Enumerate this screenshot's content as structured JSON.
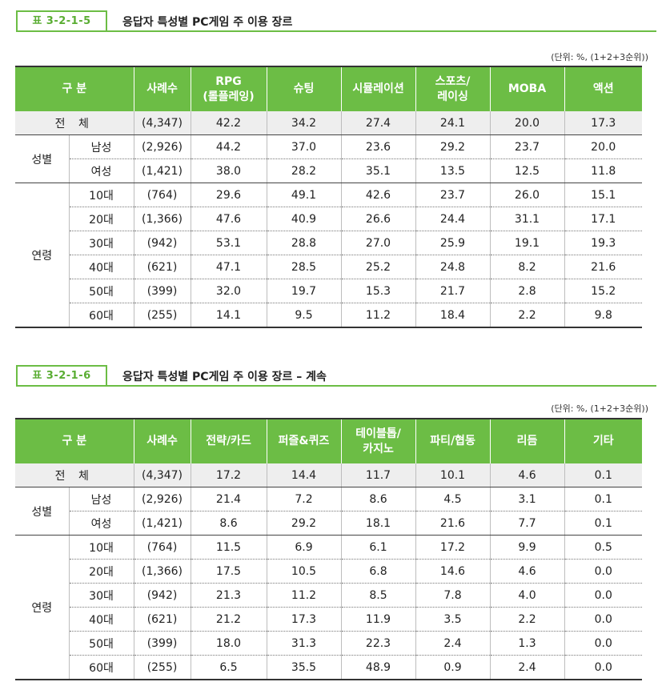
{
  "table1": {
    "tag": "표 3-2-1-5",
    "title": "응답자 특성별 PC게임 주 이용 장르",
    "unit": "(단위: %, (1+2+3순위))",
    "headers": {
      "category": "구 분",
      "n": "사례수",
      "c1a": "RPG",
      "c1b": "(롤플레잉)",
      "c2": "슈팅",
      "c3": "시뮬레이션",
      "c4a": "스포츠/",
      "c4b": "레이싱",
      "c5": "MOBA",
      "c6": "액션"
    },
    "total": {
      "label": "전 체",
      "n": "(4,347)",
      "v": [
        "42.2",
        "34.2",
        "27.4",
        "24.1",
        "20.0",
        "17.3"
      ]
    },
    "gender": {
      "group": "성별",
      "rows": [
        {
          "label": "남성",
          "n": "(2,926)",
          "v": [
            "44.2",
            "37.0",
            "23.6",
            "29.2",
            "23.7",
            "20.0"
          ]
        },
        {
          "label": "여성",
          "n": "(1,421)",
          "v": [
            "38.0",
            "28.2",
            "35.1",
            "13.5",
            "12.5",
            "11.8"
          ]
        }
      ]
    },
    "age": {
      "group": "연령",
      "rows": [
        {
          "label": "10대",
          "n": "(764)",
          "v": [
            "29.6",
            "49.1",
            "42.6",
            "23.7",
            "26.0",
            "15.1"
          ]
        },
        {
          "label": "20대",
          "n": "(1,366)",
          "v": [
            "47.6",
            "40.9",
            "26.6",
            "24.4",
            "31.1",
            "17.1"
          ]
        },
        {
          "label": "30대",
          "n": "(942)",
          "v": [
            "53.1",
            "28.8",
            "27.0",
            "25.9",
            "19.1",
            "19.3"
          ]
        },
        {
          "label": "40대",
          "n": "(621)",
          "v": [
            "47.1",
            "28.5",
            "25.2",
            "24.8",
            "8.2",
            "21.6"
          ]
        },
        {
          "label": "50대",
          "n": "(399)",
          "v": [
            "32.0",
            "19.7",
            "15.3",
            "21.7",
            "2.8",
            "15.2"
          ]
        },
        {
          "label": "60대",
          "n": "(255)",
          "v": [
            "14.1",
            "9.5",
            "11.2",
            "18.4",
            "2.2",
            "9.8"
          ]
        }
      ]
    }
  },
  "table2": {
    "tag": "표 3-2-1-6",
    "title": "응답자 특성별 PC게임 주 이용 장르 – 계속",
    "unit": "(단위: %, (1+2+3순위))",
    "headers": {
      "category": "구 분",
      "n": "사례수",
      "c1": "전략/카드",
      "c2": "퍼즐&퀴즈",
      "c3a": "테이블톱/",
      "c3b": "카지노",
      "c4": "파티/협동",
      "c5": "리듬",
      "c6": "기타"
    },
    "total": {
      "label": "전 체",
      "n": "(4,347)",
      "v": [
        "17.2",
        "14.4",
        "11.7",
        "10.1",
        "4.6",
        "0.1"
      ]
    },
    "gender": {
      "group": "성별",
      "rows": [
        {
          "label": "남성",
          "n": "(2,926)",
          "v": [
            "21.4",
            "7.2",
            "8.6",
            "4.5",
            "3.1",
            "0.1"
          ]
        },
        {
          "label": "여성",
          "n": "(1,421)",
          "v": [
            "8.6",
            "29.2",
            "18.1",
            "21.6",
            "7.7",
            "0.1"
          ]
        }
      ]
    },
    "age": {
      "group": "연령",
      "rows": [
        {
          "label": "10대",
          "n": "(764)",
          "v": [
            "11.5",
            "6.9",
            "6.1",
            "17.2",
            "9.9",
            "0.5"
          ]
        },
        {
          "label": "20대",
          "n": "(1,366)",
          "v": [
            "17.5",
            "10.5",
            "6.8",
            "14.6",
            "4.6",
            "0.0"
          ]
        },
        {
          "label": "30대",
          "n": "(942)",
          "v": [
            "21.3",
            "11.2",
            "8.5",
            "7.8",
            "4.0",
            "0.0"
          ]
        },
        {
          "label": "40대",
          "n": "(621)",
          "v": [
            "21.2",
            "17.3",
            "11.9",
            "3.5",
            "2.2",
            "0.0"
          ]
        },
        {
          "label": "50대",
          "n": "(399)",
          "v": [
            "18.0",
            "31.3",
            "22.3",
            "2.4",
            "1.3",
            "0.0"
          ]
        },
        {
          "label": "60대",
          "n": "(255)",
          "v": [
            "6.5",
            "35.5",
            "48.9",
            "0.9",
            "2.4",
            "0.0"
          ]
        }
      ]
    }
  }
}
